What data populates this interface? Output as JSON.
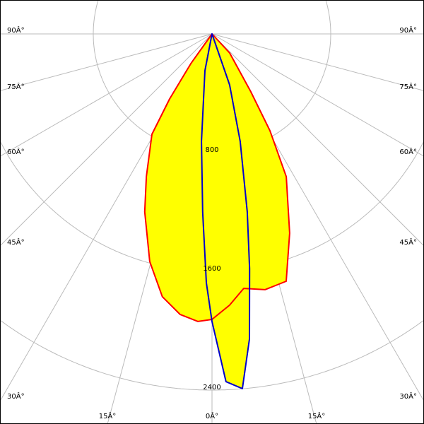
{
  "chart_data": {
    "type": "polar",
    "title": "",
    "radial_ticks": [
      800,
      1600,
      2400
    ],
    "radial_tick_labels": [
      "800",
      "1600",
      "2400"
    ],
    "angle_ticks": [
      0,
      15,
      30,
      45,
      60,
      75,
      90
    ],
    "angle_labels_left": [
      "0Â°",
      "15Â°",
      "30Â°",
      "45Â°",
      "60Â°",
      "75Â°",
      "90Â°"
    ],
    "angle_labels_right": [
      "15Â°",
      "30Â°",
      "45Â°",
      "60Â°",
      "75Â°",
      "90Â°"
    ],
    "grid": true,
    "fill_color": "#ffff00",
    "series": [
      {
        "color": "#ff0000",
        "angles": [
          0,
          -35.5,
          -33.1,
          -30.9,
          -24.7,
          -20.7,
          -15.3,
          -10.7,
          -6.5,
          -2.8,
          0,
          3.7,
          7.1,
          11.7,
          16.7,
          21.3,
          27.5,
          30.9,
          33.9,
          42.8
        ],
        "values": [
          0,
          246,
          523,
          788,
          1059,
          1282,
          1590,
          1802,
          1902,
          1940,
          1924,
          1832,
          1728,
          1760,
          1740,
          1441,
          1084,
          760,
          470,
          175
        ]
      },
      {
        "color": "#0000cc",
        "angles": [
          0,
          -10.9,
          -5.6,
          -3.0,
          -1.3,
          0,
          2.3,
          4.9,
          7.0,
          9.1,
          11.2,
          14.7,
          19.1
        ],
        "values": [
          0,
          252,
          727,
          1202,
          1677,
          1938,
          2345,
          2399,
          2072,
          1601,
          1223,
          749,
          363
        ]
      }
    ]
  }
}
